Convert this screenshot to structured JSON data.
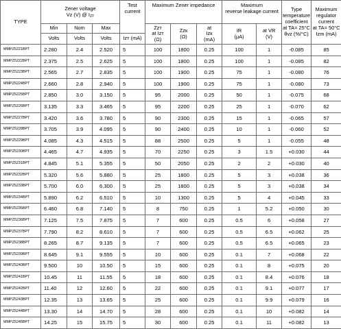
{
  "headers": {
    "type": "TYPE",
    "zener_voltage": "Zener voltage",
    "zener_voltage_sub_pre": "Vz (V) @ I",
    "zener_voltage_sub_idx": "ZT",
    "test_current_line1": "Test",
    "test_current_line2": "current",
    "max_zener_impedance": "Maximum Zener impedance",
    "max_reverse_leakage_line1": "Maximum",
    "max_reverse_leakage_line2": "reverse leakage current",
    "temp_coeff_line1": "Type",
    "temp_coeff_line2": "temperature",
    "temp_coeff_line3": "coefficient",
    "temp_coeff_line4": "at TA= 25°C",
    "temp_coeff_line5": "θvz (%/°C)",
    "max_regulator_line1": "Maximum",
    "max_regulator_line2": "regulator",
    "max_regulator_line3": "current",
    "max_regulator_line4": "at TA= 50°C",
    "max_regulator_line5": "Izm (mA)",
    "min": "Min",
    "nom": "Nom",
    "max": "Max",
    "volts": "Volts",
    "izt_ma": "Izт (mA)",
    "zzt_line1": "Zzт",
    "zzt_line2": "at Izт",
    "zzt_line3": "(Ω)",
    "zzk_line1": "Zzк",
    "zzk_line2": "(Ω)",
    "izk_line1": "at",
    "izk_line2": "Izк",
    "izk_line3": "(mA)",
    "ir_line1": "IR",
    "ir_line2": "(μA)",
    "vr_line1": "at VR",
    "vr_line2": "(V)"
  },
  "rows": [
    {
      "type": "MMPZ5221BPT",
      "min": "2.280",
      "nom": "2.4",
      "max": "2.520",
      "izt": "5",
      "zzt": "100",
      "zzk": "1800",
      "izk": "0.25",
      "ir": "100",
      "vr": "1",
      "tc": "-0.085",
      "izm": "85"
    },
    {
      "type": "MMPZ5222BPT",
      "min": "2.375",
      "nom": "2.5",
      "max": "2.625",
      "izt": "5",
      "zzt": "100",
      "zzk": "1800",
      "izk": "0.25",
      "ir": "100",
      "vr": "1",
      "tc": "-0.085",
      "izm": "82"
    },
    {
      "type": "MMPZ5223BPT",
      "min": "2.565",
      "nom": "2.7",
      "max": "2.835",
      "izt": "5",
      "zzt": "100",
      "zzk": "1900",
      "izk": "0.25",
      "ir": "75",
      "vr": "1",
      "tc": "-0.080",
      "izm": "76"
    },
    {
      "type": "MMPZ5224BPT",
      "min": "2.660",
      "nom": "2.8",
      "max": "2.940",
      "izt": "5",
      "zzt": "100",
      "zzk": "1900",
      "izk": "0.25",
      "ir": "75",
      "vr": "1",
      "tc": "-0.080",
      "izm": "73"
    },
    {
      "type": "MMPZ5225BPT",
      "min": "2.850",
      "nom": "3.0",
      "max": "3.150",
      "izt": "5",
      "zzt": "95",
      "zzk": "2000",
      "izk": "0.25",
      "ir": "50",
      "vr": "1",
      "tc": "-0.075",
      "izm": "68"
    },
    {
      "type": "MMPZ5226BPT",
      "min": "3.135",
      "nom": "3.3",
      "max": "3.465",
      "izt": "5",
      "zzt": "95",
      "zzk": "2200",
      "izk": "0.25",
      "ir": "25",
      "vr": "1",
      "tc": "-0.070",
      "izm": "62"
    },
    {
      "type": "MMPZ5227BPT",
      "min": "3.420",
      "nom": "3.6",
      "max": "3.780",
      "izt": "5",
      "zzt": "90",
      "zzk": "2300",
      "izk": "0.25",
      "ir": "15",
      "vr": "1",
      "tc": "-0.065",
      "izm": "57"
    },
    {
      "type": "MMPZ5228BPT",
      "min": "3.705",
      "nom": "3.9",
      "max": "4.095",
      "izt": "5",
      "zzt": "90",
      "zzk": "2400",
      "izk": "0.25",
      "ir": "10",
      "vr": "1",
      "tc": "-0.060",
      "izm": "52"
    },
    {
      "type": "MMPZ5229BPT",
      "min": "4.085",
      "nom": "4.3",
      "max": "4.515",
      "izt": "5",
      "zzt": "88",
      "zzk": "2500",
      "izk": "0.25",
      "ir": "5",
      "vr": "1",
      "tc": "-0.055",
      "izm": "48"
    },
    {
      "type": "MMPZ5230BPT",
      "min": "4.465",
      "nom": "4.7",
      "max": "4.935",
      "izt": "5",
      "zzt": "70",
      "zzk": "2250",
      "izk": "0.25",
      "ir": "3",
      "vr": "1.5",
      "tc": "+0.030",
      "izm": "44"
    },
    {
      "type": "MMPZ5231BPT",
      "min": "4.845",
      "nom": "5.1",
      "max": "5.355",
      "izt": "5",
      "zzt": "50",
      "zzk": "2050",
      "izk": "0.25",
      "ir": "2",
      "vr": "2",
      "tc": "+0.030",
      "izm": "40"
    },
    {
      "type": "MMPZ5232BPT",
      "min": "5.320",
      "nom": "5.6",
      "max": "5.880",
      "izt": "5",
      "zzt": "25",
      "zzk": "1800",
      "izk": "0.25",
      "ir": "5",
      "vr": "3",
      "tc": "+0.038",
      "izm": "36"
    },
    {
      "type": "MMPZ5233BPT",
      "min": "5.700",
      "nom": "6.0",
      "max": "6.300",
      "izt": "5",
      "zzt": "25",
      "zzk": "1800",
      "izk": "0.25",
      "ir": "5",
      "vr": "3",
      "tc": "+0.038",
      "izm": "34"
    },
    {
      "type": "MMPZ5234BPT",
      "min": "5.890",
      "nom": "6.2",
      "max": "6.510",
      "izt": "5",
      "zzt": "10",
      "zzk": "1300",
      "izk": "0.25",
      "ir": "5",
      "vr": "4",
      "tc": "+0.045",
      "izm": "33"
    },
    {
      "type": "MMPZ5235BPT",
      "min": "6.460",
      "nom": "6.8",
      "max": "7.140",
      "izt": "5",
      "zzt": "8",
      "zzk": "750",
      "izk": "0.25",
      "ir": "1",
      "vr": "5.2",
      "tc": "+0.050",
      "izm": "30"
    },
    {
      "type": "MMPZ5236BPT",
      "min": "7.125",
      "nom": "7.5",
      "max": "7.875",
      "izt": "5",
      "zzt": "7",
      "zzk": "600",
      "izk": "0.25",
      "ir": "0.5",
      "vr": "6",
      "tc": "+0.058",
      "izm": "27"
    },
    {
      "type": "MMPZ5237BPT",
      "min": "7.790",
      "nom": "8.2",
      "max": "8.610",
      "izt": "5",
      "zzt": "7",
      "zzk": "600",
      "izk": "0.25",
      "ir": "0.5",
      "vr": "6.5",
      "tc": "+0.062",
      "izm": "25"
    },
    {
      "type": "MMPZ5238BPT",
      "min": "8.265",
      "nom": "8.7",
      "max": "9.135",
      "izt": "5",
      "zzt": "7",
      "zzk": "600",
      "izk": "0.25",
      "ir": "0.5",
      "vr": "6.5",
      "tc": "+0.065",
      "izm": "23"
    },
    {
      "type": "MMPZ5239BPT",
      "min": "8.645",
      "nom": "9.1",
      "max": "9.555",
      "izt": "5",
      "zzt": "10",
      "zzk": "600",
      "izk": "0.25",
      "ir": "0.1",
      "vr": "7",
      "tc": "+0.068",
      "izm": "22"
    },
    {
      "type": "MMPZ5240BPT",
      "min": "9.500",
      "nom": "10",
      "max": "10.50",
      "izt": "5",
      "zzt": "15",
      "zzk": "600",
      "izk": "0.25",
      "ir": "0.1",
      "vr": "8",
      "tc": "+0.075",
      "izm": "20"
    },
    {
      "type": "MMPZ5241BPT",
      "min": "10.45",
      "nom": "11",
      "max": "11.55",
      "izt": "5",
      "zzt": "18",
      "zzk": "600",
      "izk": "0.25",
      "ir": "0.1",
      "vr": "8.4",
      "tc": "+0.076",
      "izm": "18"
    },
    {
      "type": "MMPZ5242BPT",
      "min": "11.40",
      "nom": "12",
      "max": "12.60",
      "izt": "5",
      "zzt": "22",
      "zzk": "600",
      "izk": "0.25",
      "ir": "0.1",
      "vr": "9.1",
      "tc": "+0.077",
      "izm": "17"
    },
    {
      "type": "MMPZ5243BPT",
      "min": "12.35",
      "nom": "13",
      "max": "13.65",
      "izt": "5",
      "zzt": "25",
      "zzk": "600",
      "izk": "0.25",
      "ir": "0.1",
      "vr": "9.9",
      "tc": "+0.079",
      "izm": "16"
    },
    {
      "type": "MMPZ5244BPT",
      "min": "13.30",
      "nom": "14",
      "max": "14.70",
      "izt": "5",
      "zzt": "28",
      "zzk": "600",
      "izk": "0.25",
      "ir": "0.1",
      "vr": "10",
      "tc": "+0.082",
      "izm": "14"
    },
    {
      "type": "MMPZ5245BPT",
      "min": "14.25",
      "nom": "15",
      "max": "15.75",
      "izt": "5",
      "zzt": "30",
      "zzk": "600",
      "izk": "0.25",
      "ir": "0.1",
      "vr": "11",
      "tc": "+0.082",
      "izm": "13"
    }
  ]
}
